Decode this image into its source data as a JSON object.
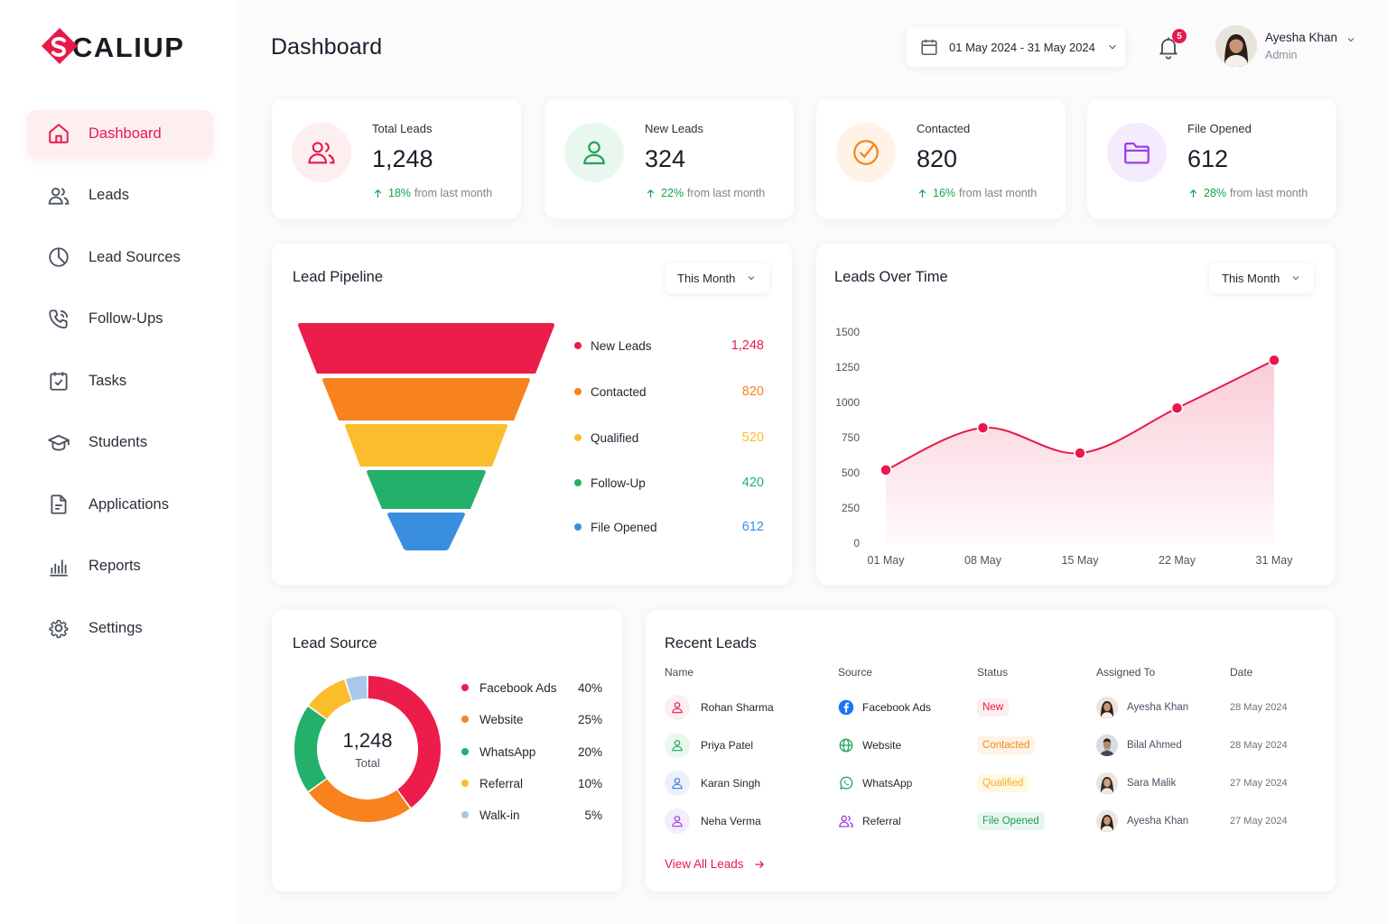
{
  "brand": {
    "name": "CALIUP",
    "accent": "#e8194a"
  },
  "sidebar": {
    "items": [
      {
        "label": "Dashboard",
        "icon": "home-icon",
        "active": true
      },
      {
        "label": "Leads",
        "icon": "users-icon"
      },
      {
        "label": "Lead Sources",
        "icon": "pie-chart-icon"
      },
      {
        "label": "Follow-Ups",
        "icon": "phone-icon"
      },
      {
        "label": "Tasks",
        "icon": "calendar-check-icon"
      },
      {
        "label": "Students",
        "icon": "graduation-cap-icon"
      },
      {
        "label": "Applications",
        "icon": "document-icon"
      },
      {
        "label": "Reports",
        "icon": "bar-chart-icon"
      },
      {
        "label": "Settings",
        "icon": "gear-icon"
      }
    ]
  },
  "header": {
    "title": "Dashboard",
    "date_range": "01 May 2024 - 31 May 2024",
    "notifications": "5",
    "user": {
      "name": "Ayesha Khan",
      "role": "Admin"
    }
  },
  "stats": [
    {
      "label": "Total Leads",
      "value": "1,248",
      "pct": "18%",
      "suffix": "from last month",
      "color": "#e8194a",
      "bg": "#fdeef0",
      "icon": "users-icon"
    },
    {
      "label": "New Leads",
      "value": "324",
      "pct": "22%",
      "suffix": "from last month",
      "color": "#22a55b",
      "bg": "#eaf7ef",
      "icon": "user-icon"
    },
    {
      "label": "Contacted",
      "value": "820",
      "pct": "16%",
      "suffix": "from last month",
      "color": "#f5861f",
      "bg": "#fef3e6",
      "icon": "check-circle-icon"
    },
    {
      "label": "File Opened",
      "value": "612",
      "pct": "28%",
      "suffix": "from last month",
      "color": "#9b3fe6",
      "bg": "#f4ecfd",
      "icon": "folder-icon"
    }
  ],
  "pipeline": {
    "title": "Lead Pipeline",
    "filter": "This Month",
    "stages": [
      {
        "label": "New Leads",
        "value": "1,248",
        "color": "#ec1c4b"
      },
      {
        "label": "Contacted",
        "value": "820",
        "color": "#f7821e"
      },
      {
        "label": "Qualified",
        "value": "520",
        "color": "#fbbd2c"
      },
      {
        "label": "Follow-Up",
        "value": "420",
        "color": "#23b06a"
      },
      {
        "label": "File Opened",
        "value": "612",
        "color": "#3a8ee0"
      }
    ]
  },
  "leads_over_time": {
    "title": "Leads Over Time",
    "filter": "This Month"
  },
  "chart_data": {
    "type": "area",
    "categories": [
      "01 May",
      "08 May",
      "15 May",
      "22 May",
      "31 May"
    ],
    "values": [
      520,
      820,
      640,
      960,
      1300
    ],
    "ylim": [
      0,
      1500
    ],
    "yticks": [
      0,
      250,
      500,
      750,
      1000,
      1250,
      1500
    ],
    "color": "#e8194a",
    "grid": false
  },
  "lead_source": {
    "title": "Lead Source",
    "total": "1,248",
    "total_label": "Total",
    "items": [
      {
        "label": "Facebook Ads",
        "pct": "40%",
        "share": 40,
        "color": "#ec1c4b"
      },
      {
        "label": "Website",
        "pct": "25%",
        "share": 25,
        "color": "#f7821e"
      },
      {
        "label": "WhatsApp",
        "pct": "20%",
        "share": 20,
        "color": "#23b06a"
      },
      {
        "label": "Referral",
        "pct": "10%",
        "share": 10,
        "color": "#fbbd2c"
      },
      {
        "label": "Walk-in",
        "pct": "5%",
        "share": 5,
        "color": "#a7c8ea"
      }
    ]
  },
  "recent_leads": {
    "title": "Recent Leads",
    "columns": [
      "Name",
      "Source",
      "Status",
      "Assigned To",
      "Date"
    ],
    "rows": [
      {
        "name": "Rohan Sharma",
        "av_color": "#e8194a",
        "av_bg": "#fdeef0",
        "source": "Facebook Ads",
        "source_icon": "facebook-icon",
        "status": "New",
        "status_color": "#e8194a",
        "status_bg": "#fdeef0",
        "assigned": "Ayesha Khan",
        "date": "28 May 2024"
      },
      {
        "name": "Priya Patel",
        "av_color": "#22a55b",
        "av_bg": "#eaf7ef",
        "source": "Website",
        "source_icon": "globe-icon",
        "status": "Contacted",
        "status_color": "#f5861f",
        "status_bg": "#fef3e6",
        "assigned": "Bilal Ahmed",
        "date": "28 May 2024"
      },
      {
        "name": "Karan Singh",
        "av_color": "#3a7ed6",
        "av_bg": "#eaf1fb",
        "source": "WhatsApp",
        "source_icon": "whatsapp-icon",
        "status": "Qualified",
        "status_color": "#f2b31a",
        "status_bg": "#fef8e4",
        "assigned": "Sara Malik",
        "date": "27 May 2024"
      },
      {
        "name": "Neha Verma",
        "av_color": "#9b3fe6",
        "av_bg": "#f4ecfd",
        "source": "Referral",
        "source_icon": "users-icon",
        "status": "File Opened",
        "status_color": "#1f9a55",
        "status_bg": "#e8f7ee",
        "assigned": "Ayesha Khan",
        "date": "27 May 2024"
      }
    ],
    "view_all": "View All Leads"
  }
}
